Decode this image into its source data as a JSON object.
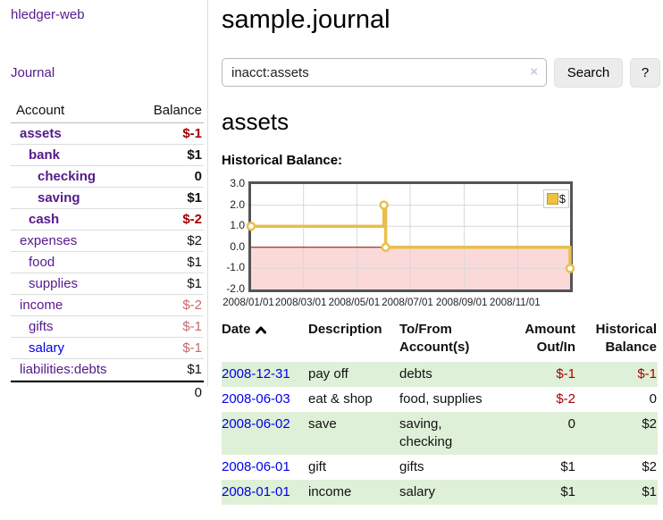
{
  "app": {
    "brand": "hledger-web"
  },
  "sidebar": {
    "journal_link": "Journal",
    "accounts": {
      "col_account": "Account",
      "col_balance": "Balance",
      "rows": [
        {
          "name": "assets",
          "indent": 1,
          "bold": true,
          "name_color": "purple",
          "balance": "$-1",
          "balance_color": "neg-strong"
        },
        {
          "name": "bank",
          "indent": 2,
          "bold": true,
          "name_color": "purple",
          "balance": "$1",
          "balance_color": "normal"
        },
        {
          "name": "checking",
          "indent": 3,
          "bold": true,
          "name_color": "purple",
          "balance": "0",
          "balance_color": "normal"
        },
        {
          "name": "saving",
          "indent": 3,
          "bold": true,
          "name_color": "purple",
          "balance": "$1",
          "balance_color": "normal"
        },
        {
          "name": "cash",
          "indent": 2,
          "bold": true,
          "name_color": "purple",
          "balance": "$-2",
          "balance_color": "neg-strong"
        },
        {
          "name": "expenses",
          "indent": 1,
          "bold": false,
          "name_color": "purple",
          "balance": "$2",
          "balance_color": "normal"
        },
        {
          "name": "food",
          "indent": 2,
          "bold": false,
          "name_color": "purple",
          "balance": "$1",
          "balance_color": "normal"
        },
        {
          "name": "supplies",
          "indent": 2,
          "bold": false,
          "name_color": "purple",
          "balance": "$1",
          "balance_color": "normal"
        },
        {
          "name": "income",
          "indent": 1,
          "bold": false,
          "name_color": "purple",
          "balance": "$-2",
          "balance_color": "neg-soft"
        },
        {
          "name": "gifts",
          "indent": 2,
          "bold": false,
          "name_color": "purple",
          "balance": "$-1",
          "balance_color": "neg-soft"
        },
        {
          "name": "salary",
          "indent": 2,
          "bold": false,
          "name_color": "blue",
          "balance": "$-1",
          "balance_color": "neg-soft"
        },
        {
          "name": "liabilities:debts",
          "indent": 1,
          "bold": false,
          "name_color": "purple",
          "balance": "$1",
          "balance_color": "normal"
        }
      ],
      "total": "0"
    }
  },
  "main": {
    "title": "sample.journal",
    "search": {
      "value": "inacct:assets",
      "clear": "×",
      "search_button": "Search",
      "help_button": "?"
    },
    "account_heading": "assets",
    "section_label": "Historical Balance:"
  },
  "chart_data": {
    "type": "line",
    "step": true,
    "series": [
      {
        "name": "$",
        "color": "#e8bf4d",
        "points": [
          {
            "date": "2008-01-01",
            "value": 1
          },
          {
            "date": "2008-06-01",
            "value": 2
          },
          {
            "date": "2008-06-03",
            "value": 0
          },
          {
            "date": "2008-12-31",
            "value": -1
          }
        ]
      }
    ],
    "ylim": [
      -2,
      3
    ],
    "yticks": [
      "3.0",
      "2.0",
      "1.0",
      "0.0",
      "-1.0",
      "-2.0"
    ],
    "ytick_values": [
      3,
      2,
      1,
      0,
      -1,
      -2
    ],
    "xlim": [
      "2008-01-01",
      "2008-12-31"
    ],
    "xticks": [
      {
        "label": "2008/01/01",
        "date": "2008-01-01"
      },
      {
        "label": "2008/03/01",
        "date": "2008-03-01"
      },
      {
        "label": "2008/05/01",
        "date": "2008-05-01"
      },
      {
        "label": "2008/07/01",
        "date": "2008-07-01"
      },
      {
        "label": "2008/09/01",
        "date": "2008-09-01"
      },
      {
        "label": "2008/11/01",
        "date": "2008-11-01"
      }
    ],
    "legend": {
      "label": "$",
      "position": "top-right"
    },
    "grid": true,
    "zero_line_color": "#8b0000",
    "negative_region_color": "#fbd9d9",
    "grid_color": "#d8d8d8"
  },
  "register": {
    "headers": {
      "date": "Date",
      "sort_icon": "chevron-up",
      "description": "Description",
      "accounts_line1": "To/From",
      "accounts_line2": "Account(s)",
      "amount_line1": "Amount",
      "amount_line2": "Out/In",
      "balance_line1": "Historical",
      "balance_line2": "Balance"
    },
    "rows": [
      {
        "date": "2008-12-31",
        "description": "pay off",
        "accounts": "debts",
        "amount": "$-1",
        "balance": "$-1"
      },
      {
        "date": "2008-06-03",
        "description": "eat & shop",
        "accounts": "food, supplies",
        "amount": "$-2",
        "balance": "0"
      },
      {
        "date": "2008-06-02",
        "description": "save",
        "accounts": "saving, checking",
        "amount": "0",
        "balance": "$2"
      },
      {
        "date": "2008-06-01",
        "description": "gift",
        "accounts": "gifts",
        "amount": "$1",
        "balance": "$2"
      },
      {
        "date": "2008-01-01",
        "description": "income",
        "accounts": "salary",
        "amount": "$1",
        "balance": "$1"
      }
    ],
    "stripe_color": "#dff0d8"
  },
  "colors": {
    "link_purple": "#551a8b",
    "link_blue": "#0000e8",
    "negative_strong": "#a40000",
    "negative_soft": "#c56a6a",
    "chart_line": "#e8bf4d",
    "stripe_green": "#dff0d8"
  }
}
